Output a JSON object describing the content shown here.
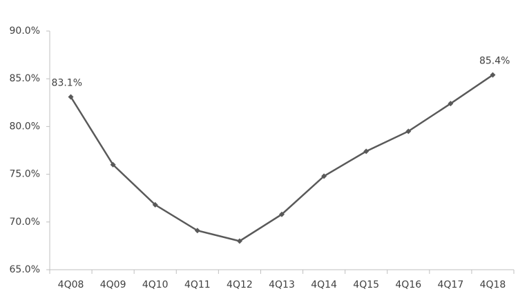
{
  "chart_data": {
    "type": "line",
    "categories": [
      "4Q08",
      "4Q09",
      "4Q10",
      "4Q11",
      "4Q12",
      "4Q13",
      "4Q14",
      "4Q15",
      "4Q16",
      "4Q17",
      "4Q18"
    ],
    "series": [
      {
        "color": "#595959",
        "values": [
          83.1,
          76.0,
          71.8,
          69.1,
          68.0,
          70.8,
          74.8,
          77.4,
          79.5,
          82.4,
          85.4
        ],
        "value_labels": [
          "83.1%",
          null,
          null,
          null,
          null,
          null,
          null,
          null,
          null,
          null,
          "85.4%"
        ]
      }
    ],
    "ylim": [
      65,
      90
    ],
    "yticks": [
      {
        "value": 65,
        "label": "65.0%"
      },
      {
        "value": 70,
        "label": "70.0%"
      },
      {
        "value": 75,
        "label": "75.0%"
      },
      {
        "value": 80,
        "label": "80.0%"
      },
      {
        "value": 85,
        "label": "85.0%"
      },
      {
        "value": 90,
        "label": "90.0%"
      }
    ],
    "grid": false
  }
}
